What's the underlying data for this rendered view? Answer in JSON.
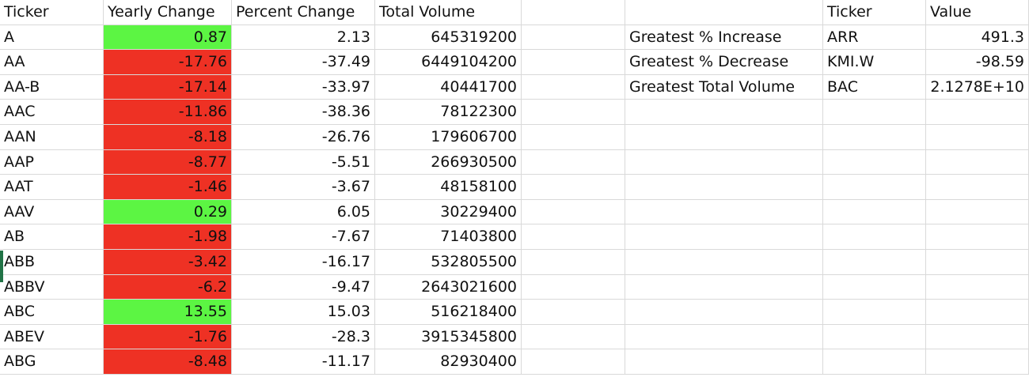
{
  "colors": {
    "positive": "#5cf543",
    "negative": "#ee3124",
    "gridline": "#d9d9d9"
  },
  "headers": {
    "ticker": "Ticker",
    "yearly_change": "Yearly Change",
    "percent_change": "Percent Change",
    "total_volume": "Total Volume",
    "summary_ticker": "Ticker",
    "summary_value": "Value"
  },
  "rows": [
    {
      "ticker": "A",
      "yearly_change": "0.87",
      "percent_change": "2.13",
      "total_volume": "645319200",
      "sign": "pos"
    },
    {
      "ticker": "AA",
      "yearly_change": "-17.76",
      "percent_change": "-37.49",
      "total_volume": "6449104200",
      "sign": "neg"
    },
    {
      "ticker": "AA-B",
      "yearly_change": "-17.14",
      "percent_change": "-33.97",
      "total_volume": "40441700",
      "sign": "neg"
    },
    {
      "ticker": "AAC",
      "yearly_change": "-11.86",
      "percent_change": "-38.36",
      "total_volume": "78122300",
      "sign": "neg"
    },
    {
      "ticker": "AAN",
      "yearly_change": "-8.18",
      "percent_change": "-26.76",
      "total_volume": "179606700",
      "sign": "neg"
    },
    {
      "ticker": "AAP",
      "yearly_change": "-8.77",
      "percent_change": "-5.51",
      "total_volume": "266930500",
      "sign": "neg"
    },
    {
      "ticker": "AAT",
      "yearly_change": "-1.46",
      "percent_change": "-3.67",
      "total_volume": "48158100",
      "sign": "neg"
    },
    {
      "ticker": "AAV",
      "yearly_change": "0.29",
      "percent_change": "6.05",
      "total_volume": "30229400",
      "sign": "pos"
    },
    {
      "ticker": "AB",
      "yearly_change": "-1.98",
      "percent_change": "-7.67",
      "total_volume": "71403800",
      "sign": "neg"
    },
    {
      "ticker": "ABB",
      "yearly_change": "-3.42",
      "percent_change": "-16.17",
      "total_volume": "532805500",
      "sign": "neg"
    },
    {
      "ticker": "ABBV",
      "yearly_change": "-6.2",
      "percent_change": "-9.47",
      "total_volume": "2643021600",
      "sign": "neg"
    },
    {
      "ticker": "ABC",
      "yearly_change": "13.55",
      "percent_change": "15.03",
      "total_volume": "516218400",
      "sign": "pos"
    },
    {
      "ticker": "ABEV",
      "yearly_change": "-1.76",
      "percent_change": "-28.3",
      "total_volume": "3915345800",
      "sign": "neg"
    },
    {
      "ticker": "ABG",
      "yearly_change": "-8.48",
      "percent_change": "-11.17",
      "total_volume": "82930400",
      "sign": "neg"
    }
  ],
  "summary": [
    {
      "label": "Greatest % Increase",
      "ticker": "ARR",
      "value": "491.3"
    },
    {
      "label": "Greatest % Decrease",
      "ticker": "KMI.W",
      "value": "-98.59"
    },
    {
      "label": "Greatest Total Volume",
      "ticker": "BAC",
      "value": "2.1278E+10"
    }
  ]
}
